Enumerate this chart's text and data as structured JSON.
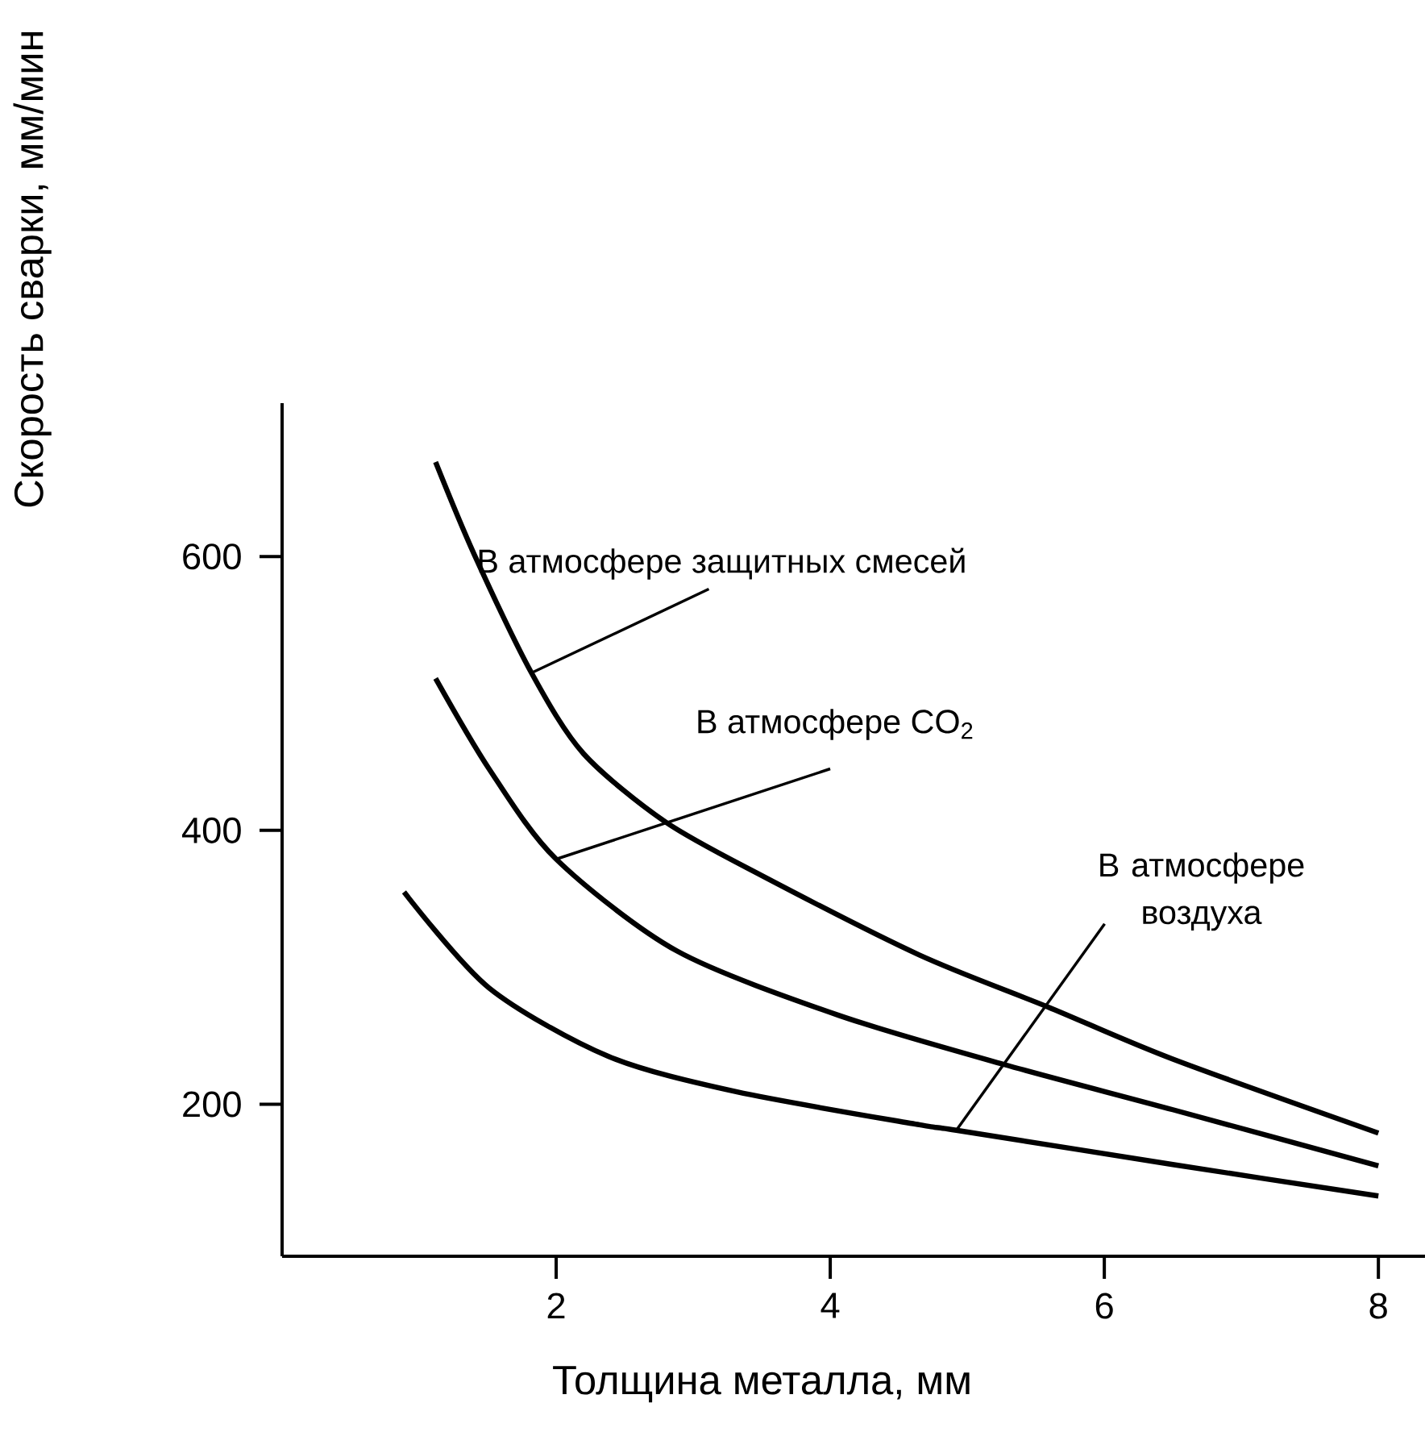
{
  "chart_data": {
    "type": "line",
    "xlabel": "Толщина металла, мм",
    "ylabel": "Скорость сварки,  мм/мин",
    "xlim": [
      0,
      8.34
    ],
    "ylim": [
      89,
      712
    ],
    "xticks": [
      2,
      4,
      6,
      8
    ],
    "yticks": [
      200,
      400,
      600
    ],
    "grid": false,
    "marker": "none",
    "line_style": "solid",
    "series": [
      {
        "color": "#000000",
        "x": [
          1.12,
          1.4,
          1.82,
          2.2,
          2.8,
          3.5,
          4.65,
          5.59,
          6.5,
          8
        ],
        "values": [
          669,
          602,
          515,
          456,
          406,
          367,
          309,
          271,
          233,
          179
        ]
      },
      {
        "color": "#000000",
        "x": [
          1.12,
          1.51,
          2,
          2.88,
          4.06,
          5.27,
          6.5,
          8
        ],
        "values": [
          511,
          445,
          379,
          312,
          265,
          229,
          196,
          155
        ]
      },
      {
        "color": "#000000",
        "x": [
          0.89,
          1.51,
          2.38,
          3.32,
          4.65,
          4.92,
          6.5,
          8
        ],
        "values": [
          355,
          285,
          235,
          209,
          185,
          181,
          156,
          133
        ]
      }
    ],
    "annotations": [
      {
        "text": "В атмосфере  защитных смесей",
        "x": 1.82,
        "y": 515
      },
      {
        "text": "В атмосфере CO$_{2}$",
        "x": 2,
        "y": 379
      },
      {
        "text": "В атмосфере воздуха",
        "x": 4.92,
        "y": 181
      }
    ]
  }
}
